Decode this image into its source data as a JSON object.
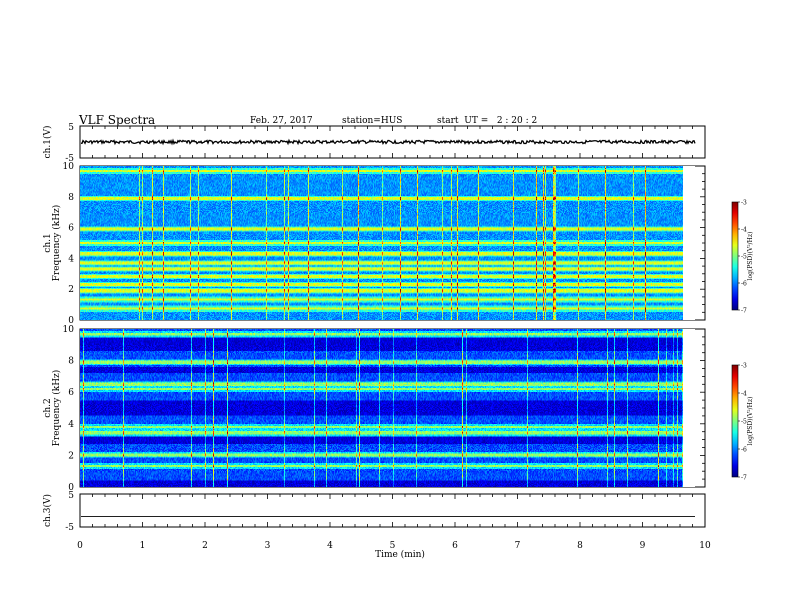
{
  "header": {
    "title": "VLF Spectra",
    "date": "Feb. 27, 2017",
    "station": "station=HUS",
    "start": "start  UT =   2 : 20 : 2"
  },
  "chart_data": [
    {
      "type": "line",
      "name": "ch1-waveform",
      "ylabel": "ch.1(V)",
      "ylim": [
        -5,
        5
      ],
      "ytick_labels": [
        "5",
        "-5"
      ],
      "baseline_level": 0,
      "xlim": [
        0,
        10
      ]
    },
    {
      "type": "heatmap",
      "name": "ch1-spectrogram",
      "ylabel": "ch.1\nFrequency (kHz)",
      "ylim": [
        0,
        10
      ],
      "yticks": [
        0,
        2,
        4,
        6,
        8,
        10
      ],
      "ytick_labels": [
        "0",
        "2",
        "4",
        "6",
        "8",
        "10"
      ],
      "xlim": [
        0,
        10
      ],
      "data_end_min": 9.8,
      "bright_bands_khz": [
        0.7,
        1.3,
        1.9,
        2.3,
        2.8,
        3.3,
        3.7,
        4.3,
        5.0,
        5.9,
        7.9,
        9.7
      ],
      "colorbar": {
        "label": "log(PSD)(V²/Hz)",
        "range": [
          -7,
          -3
        ],
        "tick_labels": [
          "-3",
          "-4",
          "-5",
          "-6",
          "-7"
        ]
      }
    },
    {
      "type": "heatmap",
      "name": "ch2-spectrogram",
      "ylabel": "ch.2\nFrequency (kHz)",
      "ylim": [
        0,
        10
      ],
      "yticks": [
        0,
        2,
        4,
        6,
        8,
        10
      ],
      "ytick_labels": [
        "0",
        "2",
        "4",
        "6",
        "8",
        "10"
      ],
      "xlim": [
        0,
        10
      ],
      "data_end_min": 9.8,
      "bright_bands_khz": [
        1.3,
        2.0,
        3.4,
        3.8,
        6.2,
        6.5,
        7.9,
        9.7
      ],
      "dark_bands_khz": [
        [
          0.0,
          0.4
        ],
        [
          2.7,
          3.2
        ],
        [
          4.5,
          5.5
        ],
        [
          7.2,
          7.6
        ],
        [
          8.6,
          9.5
        ]
      ],
      "colorbar": {
        "label": "log(PSD)(V²/Hz)",
        "range": [
          -7,
          -3
        ],
        "tick_labels": [
          "-3",
          "-4",
          "-5",
          "-6",
          "-7"
        ]
      }
    },
    {
      "type": "line",
      "name": "ch3-waveform",
      "ylabel": "ch.3(V)",
      "ylim": [
        -5,
        5
      ],
      "ytick_labels": [
        "5",
        "-5"
      ],
      "baseline_level": -1.8,
      "xlim": [
        0,
        10
      ],
      "xlabel": "Time  (min)",
      "xticks": [
        0,
        1,
        2,
        3,
        4,
        5,
        6,
        7,
        8,
        9,
        10
      ],
      "xtick_labels": [
        "0",
        "1",
        "2",
        "3",
        "4",
        "5",
        "6",
        "7",
        "8",
        "9",
        "10"
      ]
    }
  ]
}
